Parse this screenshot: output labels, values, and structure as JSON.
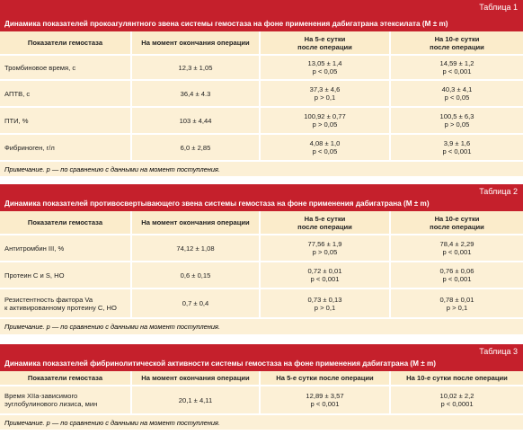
{
  "tables": [
    {
      "label": "Таблица 1",
      "title": "Динамика показателей прокоагулянтного звена системы гемостаза на фоне применения дабигатрана этексилата (M ± m)",
      "columns": [
        [
          "Показатели гемостаза"
        ],
        [
          "На момент окончания операции"
        ],
        [
          "На 5-е сутки",
          "после операции"
        ],
        [
          "На 10-е сутки",
          "после операции"
        ]
      ],
      "rows": [
        [
          [
            "Тромбиновое время, с"
          ],
          [
            "12,3 ± 1,05"
          ],
          [
            "13,05 ± 1,4",
            "p < 0,05"
          ],
          [
            "14,59 ± 1,2",
            "p < 0,001"
          ]
        ],
        [
          [
            "АПТВ, с"
          ],
          [
            "36,4 ± 4.3"
          ],
          [
            "37,3 ± 4,6",
            "p > 0,1"
          ],
          [
            "40,3 ± 4,1",
            "p < 0,05"
          ]
        ],
        [
          [
            "ПТИ, %"
          ],
          [
            "103 ± 4,44"
          ],
          [
            "100,92 ± 0,77",
            "p > 0,05"
          ],
          [
            "100,5 ± 6,3",
            "p > 0,05"
          ]
        ],
        [
          [
            "Фибриноген, г/л"
          ],
          [
            "6,0 ± 2,85"
          ],
          [
            "4,08 ± 1,0",
            "p < 0,05"
          ],
          [
            "3,9 ± 1,6",
            "p < 0,001"
          ]
        ]
      ],
      "note": "Примечание. р — по сравнению с данными на момент поступления."
    },
    {
      "label": "Таблица 2",
      "title": "Динамика показателей противосвертывающего звена системы гемостаза на фоне применения дабигатрана (M ± m)",
      "columns": [
        [
          "Показатели гемостаза"
        ],
        [
          "На момент окончания операции"
        ],
        [
          "На 5-е сутки",
          "после операции"
        ],
        [
          "На 10-е сутки",
          "после операции"
        ]
      ],
      "rows": [
        [
          [
            "Антитромбин III, %"
          ],
          [
            "74,12 ± 1,08"
          ],
          [
            "77,56 ± 1,9",
            "p > 0,05"
          ],
          [
            "78,4 ± 2,29",
            "p < 0,001"
          ]
        ],
        [
          [
            "Протеин С и S, НО"
          ],
          [
            "0,6 ± 0,15"
          ],
          [
            "0,72 ± 0,01",
            "p < 0,001"
          ],
          [
            "0,76 ± 0,06",
            "p < 0,001"
          ]
        ],
        [
          [
            "Резистентность фактора Va",
            "к активированному протеину С, НО"
          ],
          [
            "0,7 ± 0,4"
          ],
          [
            "0,73 ± 0,13",
            "p > 0,1"
          ],
          [
            "0,78 ± 0,01",
            "p > 0,1"
          ]
        ]
      ],
      "note": "Примечание. р — по сравнению с данными на момент поступления."
    },
    {
      "label": "Таблица 3",
      "title": "Динамика показателей фибринолитической активности системы гемостаза на фоне применения дабигатрана (M ± m)",
      "columns": [
        [
          "Показатели гемостаза"
        ],
        [
          "На момент окончания операции"
        ],
        [
          "На 5-е сутки после операции"
        ],
        [
          "На 10-е сутки после операции"
        ]
      ],
      "rows": [
        [
          [
            "Время XIIa-зависимого",
            "эуглобулинового лизиса, мин"
          ],
          [
            "20,1 ± 4,11"
          ],
          [
            "12,89 ± 3,57",
            "p < 0,001"
          ],
          [
            "10,02 ± 2,2",
            "p < 0,0001"
          ]
        ]
      ],
      "note": "Примечание. р — по сравнению с данными на момент поступления."
    }
  ]
}
